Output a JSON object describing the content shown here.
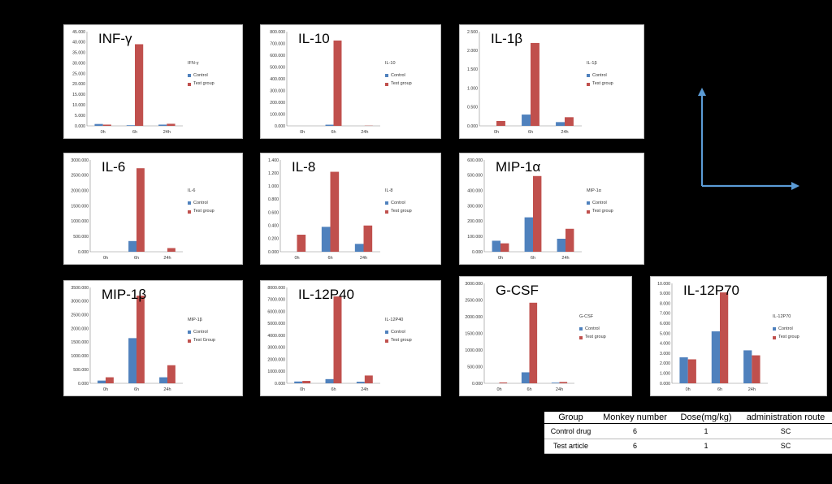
{
  "colors": {
    "control": "#4f81bd",
    "test": "#c0504d",
    "arrow": "#5b9bd5"
  },
  "chart_data": [
    {
      "type": "bar",
      "title": "INF-γ",
      "legend_title": "IFN-γ",
      "categories": [
        "0h",
        "6h",
        "24h"
      ],
      "series": [
        {
          "name": "Control",
          "values": [
            0.9,
            0.3,
            0.6
          ]
        },
        {
          "name": "Test group",
          "values": [
            0.6,
            39.0,
            1.0
          ]
        }
      ],
      "ylim": [
        0,
        45
      ],
      "ticks": [
        "0.000",
        "5.000",
        "10.000",
        "15.000",
        "20.000",
        "25.000",
        "30.000",
        "35.000",
        "40.000",
        "45.000"
      ]
    },
    {
      "type": "bar",
      "title": "IL-10",
      "legend_title": "IL-10",
      "categories": [
        "0h",
        "6h",
        "24h"
      ],
      "series": [
        {
          "name": "Control",
          "values": [
            0,
            10,
            0
          ]
        },
        {
          "name": "Test group",
          "values": [
            0,
            725,
            2
          ]
        }
      ],
      "ylim": [
        0,
        800
      ],
      "ticks": [
        "0.000",
        "100.000",
        "200.000",
        "300.000",
        "400.000",
        "500.000",
        "600.000",
        "700.000",
        "800.000"
      ]
    },
    {
      "type": "bar",
      "title": "IL-1β",
      "legend_title": "IL-1β",
      "categories": [
        "0h",
        "6h",
        "24h"
      ],
      "series": [
        {
          "name": "Control",
          "values": [
            0,
            0.3,
            0.1
          ]
        },
        {
          "name": "Test group",
          "values": [
            0.13,
            2.2,
            0.23
          ]
        }
      ],
      "ylim": [
        0,
        2.5
      ],
      "ticks": [
        "0.000",
        "0.500",
        "1.000",
        "1.500",
        "2.000",
        "2.500"
      ]
    },
    {
      "type": "bar",
      "title": "IL-6",
      "legend_title": "IL-6",
      "categories": [
        "0h",
        "6h",
        "24h"
      ],
      "series": [
        {
          "name": "Control",
          "values": [
            0,
            350,
            0
          ]
        },
        {
          "name": "Test group",
          "values": [
            0,
            2730,
            120
          ]
        }
      ],
      "ylim": [
        0,
        3000
      ],
      "ticks": [
        "0.000",
        "500.000",
        "1000.000",
        "1500.000",
        "2000.000",
        "2500.000",
        "3000.000"
      ]
    },
    {
      "type": "bar",
      "title": "IL-8",
      "legend_title": "IL-8",
      "categories": [
        "0h",
        "6h",
        "24h"
      ],
      "series": [
        {
          "name": "Control",
          "values": [
            0,
            0.38,
            0.12
          ]
        },
        {
          "name": "Test group",
          "values": [
            0.26,
            1.22,
            0.4
          ]
        }
      ],
      "ylim": [
        0,
        1.4
      ],
      "ticks": [
        "0.000",
        "0.200",
        "0.400",
        "0.600",
        "0.800",
        "1.000",
        "1.200",
        "1.400"
      ]
    },
    {
      "type": "bar",
      "title": "MIP-1α",
      "legend_title": "MIP-1α",
      "categories": [
        "0h",
        "6h",
        "24h"
      ],
      "series": [
        {
          "name": "Control",
          "values": [
            72,
            225,
            85
          ]
        },
        {
          "name": "Test group",
          "values": [
            55,
            495,
            150
          ]
        }
      ],
      "ylim": [
        0,
        600
      ],
      "ticks": [
        "0.000",
        "100.000",
        "200.000",
        "300.000",
        "400.000",
        "500.000",
        "600.000"
      ]
    },
    {
      "type": "bar",
      "title": "MIP-1β",
      "legend_title": "MIP-1β",
      "categories": [
        "0h",
        "6h",
        "24h"
      ],
      "series": [
        {
          "name": "Control",
          "values": [
            100,
            1650,
            220
          ]
        },
        {
          "name": "Test Group",
          "values": [
            220,
            3200,
            660
          ]
        }
      ],
      "ylim": [
        0,
        3500
      ],
      "ticks": [
        "0.000",
        "500.000",
        "1000.000",
        "1500.000",
        "2000.000",
        "2500.000",
        "3000.000",
        "3500.000"
      ]
    },
    {
      "type": "bar",
      "title": "IL-12P40",
      "legend_title": "IL-12P40",
      "categories": [
        "0h",
        "6h",
        "24h"
      ],
      "series": [
        {
          "name": "Control",
          "values": [
            150,
            350,
            130
          ]
        },
        {
          "name": "Test group",
          "values": [
            200,
            7250,
            650
          ]
        }
      ],
      "ylim": [
        0,
        8000
      ],
      "ticks": [
        "0.000",
        "1000.000",
        "2000.000",
        "3000.000",
        "4000.000",
        "5000.000",
        "6000.000",
        "7000.000",
        "8000.000"
      ]
    },
    {
      "type": "bar",
      "title": "G-CSF",
      "legend_title": "G-CSF",
      "categories": [
        "0h",
        "6h",
        "24h"
      ],
      "series": [
        {
          "name": "Control",
          "values": [
            0,
            330,
            20
          ]
        },
        {
          "name": "Test group",
          "values": [
            25,
            2420,
            40
          ]
        }
      ],
      "ylim": [
        0,
        3000
      ],
      "ticks": [
        "0.000",
        "500.000",
        "1000.000",
        "1500.000",
        "2000.000",
        "2500.000",
        "3000.000"
      ]
    },
    {
      "type": "bar",
      "title": "IL-12P70",
      "legend_title": "IL-12P70",
      "categories": [
        "0h",
        "6h",
        "24h"
      ],
      "series": [
        {
          "name": "Control",
          "values": [
            2.6,
            5.2,
            3.3
          ]
        },
        {
          "name": "Test group",
          "values": [
            2.4,
            9.1,
            2.8
          ]
        }
      ],
      "ylim": [
        0,
        10
      ],
      "ticks": [
        "0.000",
        "1.000",
        "2.000",
        "3.000",
        "4.000",
        "5.000",
        "6.000",
        "7.000",
        "8.000",
        "9.000",
        "10.000"
      ]
    }
  ],
  "table": {
    "headers": [
      "Group",
      "Monkey number",
      "Dose(mg/kg)",
      "administration route"
    ],
    "rows": [
      [
        "Control drug",
        "6",
        "1",
        "SC"
      ],
      [
        "Test article",
        "6",
        "1",
        "SC"
      ]
    ]
  }
}
